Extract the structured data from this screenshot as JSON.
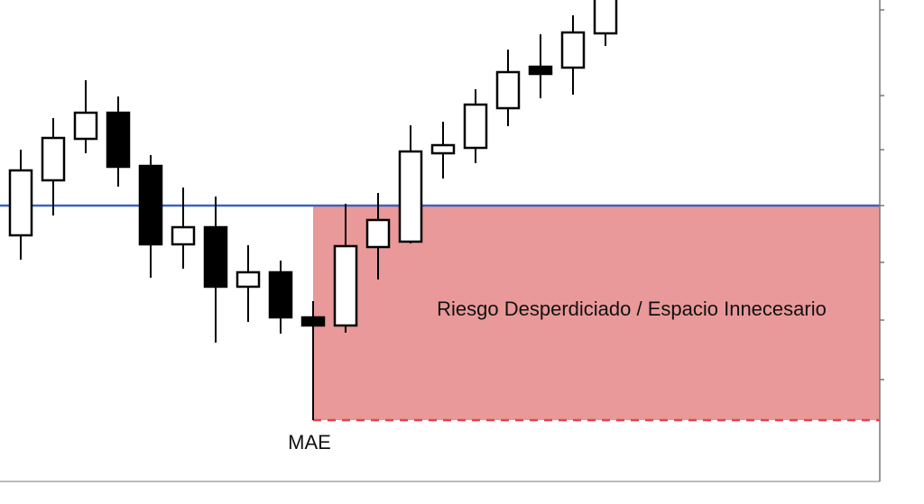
{
  "chart_data": {
    "type": "candlestick",
    "title": "",
    "xlabel": "",
    "ylabel": "",
    "grid": false,
    "candles": [
      {
        "o": 84.75,
        "h": 108.5,
        "l": 78,
        "c": 102.75
      },
      {
        "o": 100,
        "h": 117.25,
        "l": 90.25,
        "c": 111.75
      },
      {
        "o": 111.5,
        "h": 127.75,
        "l": 107.5,
        "c": 118.75
      },
      {
        "o": 118.75,
        "h": 123.25,
        "l": 98.25,
        "c": 103.75
      },
      {
        "o": 104,
        "h": 107,
        "l": 73,
        "c": 82.25
      },
      {
        "o": 82.25,
        "h": 98,
        "l": 75.5,
        "c": 87
      },
      {
        "o": 87,
        "h": 95.5,
        "l": 55,
        "c": 70.5
      },
      {
        "o": 70.5,
        "h": 82,
        "l": 60.75,
        "c": 74.5
      },
      {
        "o": 74.5,
        "h": 77.75,
        "l": 57.5,
        "c": 62
      },
      {
        "o": 62,
        "h": 66.5,
        "l": 33.5,
        "c": 59.75
      },
      {
        "o": 59.75,
        "h": 93.5,
        "l": 57.75,
        "c": 81.75
      },
      {
        "o": 81.5,
        "h": 96.5,
        "l": 72.5,
        "c": 89
      },
      {
        "o": 83,
        "h": 115.25,
        "l": 82.5,
        "c": 108
      },
      {
        "o": 107.5,
        "h": 116.25,
        "l": 100.5,
        "c": 109.75
      },
      {
        "o": 109,
        "h": 125.25,
        "l": 104.75,
        "c": 121
      },
      {
        "o": 120,
        "h": 136.25,
        "l": 115,
        "c": 130
      },
      {
        "o": 131.5,
        "h": 140.5,
        "l": 122.75,
        "c": 129.5
      },
      {
        "o": 131.25,
        "h": 145.75,
        "l": 123.75,
        "c": 141
      },
      {
        "o": 140.75,
        "h": 155,
        "l": 137.25,
        "c": 151.25
      }
    ],
    "entry_level": 93,
    "mae_level": 33.5,
    "zone_start_candle": 9,
    "annotations": {
      "zone_label": "Riesgo Desperdiciado / Espacio Innecesario",
      "mae_label": "MAE"
    },
    "colors": {
      "bullish_body": "#ffffff",
      "bearish_body": "#000000",
      "entry_line": "#3b62c4",
      "zone_fill": "#e99999",
      "mae_line": "#e0474c"
    }
  }
}
